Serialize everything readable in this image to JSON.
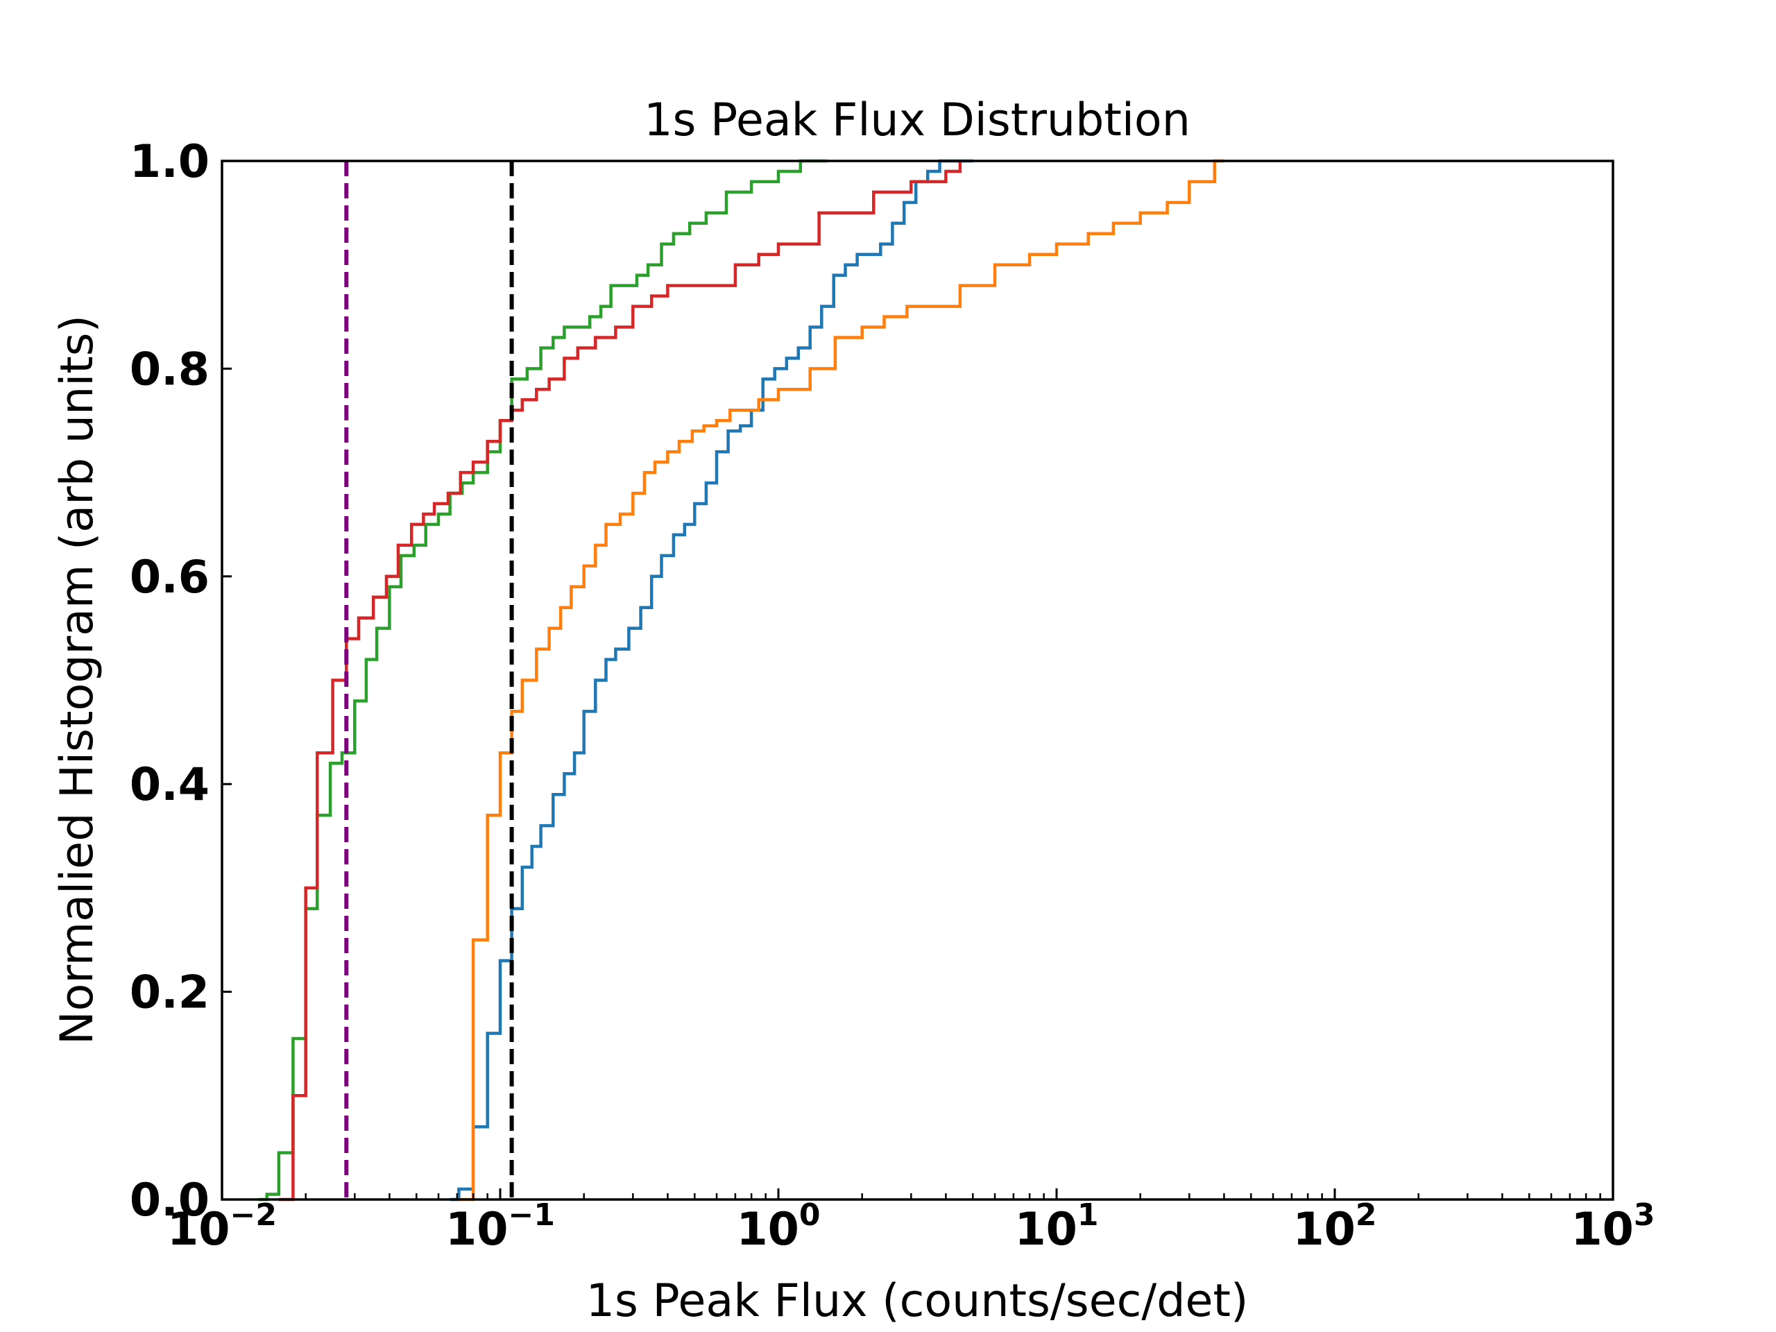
{
  "chart_data": {
    "type": "line",
    "title": "1s Peak Flux Distrubtion",
    "xlabel": "1s Peak Flux (counts/sec/det)",
    "ylabel": "Normalied Histogram (arb units)",
    "x_scale": "log",
    "xlim": [
      0.01,
      1000
    ],
    "ylim": [
      0.0,
      1.0
    ],
    "grid": false,
    "legend": "none",
    "yticks": [
      "0.0",
      "0.2",
      "0.4",
      "0.6",
      "0.8",
      "1.0"
    ],
    "xticks": [
      {
        "base": "10",
        "exp": "−2"
      },
      {
        "base": "10",
        "exp": "−1"
      },
      {
        "base": "10",
        "exp": "0"
      },
      {
        "base": "10",
        "exp": "1"
      },
      {
        "base": "10",
        "exp": "2"
      },
      {
        "base": "10",
        "exp": "3"
      }
    ],
    "vlines": [
      {
        "x": 0.028,
        "color": "#800080",
        "style": "dashed"
      },
      {
        "x": 0.11,
        "color": "#000000",
        "style": "dashed"
      }
    ],
    "series": [
      {
        "color": "#1f77b4",
        "x": [
          0.066,
          0.071,
          0.08,
          0.09,
          0.1,
          0.11,
          0.12,
          0.13,
          0.14,
          0.155,
          0.17,
          0.185,
          0.2,
          0.22,
          0.24,
          0.26,
          0.29,
          0.32,
          0.35,
          0.38,
          0.42,
          0.46,
          0.5,
          0.55,
          0.6,
          0.66,
          0.73,
          0.8,
          0.88,
          0.97,
          1.07,
          1.18,
          1.3,
          1.43,
          1.58,
          1.74,
          1.92,
          2.11,
          2.33,
          2.57,
          2.83,
          3.12,
          3.44,
          3.8,
          4.2,
          4.7,
          5.0
        ],
        "y": [
          0.0,
          0.01,
          0.07,
          0.16,
          0.23,
          0.28,
          0.32,
          0.34,
          0.36,
          0.39,
          0.41,
          0.43,
          0.47,
          0.5,
          0.52,
          0.53,
          0.55,
          0.57,
          0.6,
          0.62,
          0.64,
          0.65,
          0.67,
          0.69,
          0.72,
          0.74,
          0.745,
          0.76,
          0.79,
          0.8,
          0.81,
          0.82,
          0.84,
          0.86,
          0.89,
          0.9,
          0.91,
          0.91,
          0.92,
          0.94,
          0.96,
          0.98,
          0.99,
          1.0,
          1.0,
          1.0,
          1.0
        ]
      },
      {
        "color": "#ff7f0e",
        "x": [
          0.07,
          0.08,
          0.09,
          0.1,
          0.11,
          0.12,
          0.135,
          0.15,
          0.165,
          0.18,
          0.2,
          0.22,
          0.24,
          0.27,
          0.3,
          0.33,
          0.36,
          0.4,
          0.44,
          0.49,
          0.54,
          0.6,
          0.67,
          0.75,
          0.85,
          1.0,
          1.3,
          1.6,
          2.0,
          2.4,
          2.9,
          3.5,
          4.5,
          6.0,
          8.0,
          10.0,
          13.0,
          16.0,
          20.0,
          25.0,
          30.0,
          37.0,
          40.0
        ],
        "y": [
          0.0,
          0.25,
          0.37,
          0.43,
          0.47,
          0.5,
          0.53,
          0.55,
          0.57,
          0.59,
          0.61,
          0.63,
          0.65,
          0.66,
          0.68,
          0.7,
          0.71,
          0.72,
          0.73,
          0.74,
          0.745,
          0.75,
          0.76,
          0.76,
          0.77,
          0.78,
          0.8,
          0.83,
          0.84,
          0.85,
          0.86,
          0.86,
          0.88,
          0.9,
          0.91,
          0.92,
          0.93,
          0.94,
          0.95,
          0.96,
          0.98,
          1.0,
          1.0
        ]
      },
      {
        "color": "#2ca02c",
        "x": [
          0.0135,
          0.0145,
          0.016,
          0.018,
          0.02,
          0.022,
          0.0245,
          0.027,
          0.03,
          0.033,
          0.036,
          0.04,
          0.044,
          0.049,
          0.054,
          0.06,
          0.066,
          0.073,
          0.08,
          0.09,
          0.1,
          0.11,
          0.125,
          0.14,
          0.155,
          0.17,
          0.19,
          0.21,
          0.23,
          0.25,
          0.28,
          0.31,
          0.34,
          0.38,
          0.42,
          0.48,
          0.55,
          0.65,
          0.8,
          1.0,
          1.2,
          1.5
        ],
        "y": [
          0.0,
          0.005,
          0.045,
          0.155,
          0.28,
          0.37,
          0.42,
          0.43,
          0.48,
          0.52,
          0.55,
          0.59,
          0.62,
          0.63,
          0.65,
          0.66,
          0.68,
          0.69,
          0.7,
          0.72,
          0.75,
          0.79,
          0.8,
          0.82,
          0.83,
          0.84,
          0.84,
          0.85,
          0.86,
          0.88,
          0.88,
          0.89,
          0.9,
          0.92,
          0.93,
          0.94,
          0.95,
          0.97,
          0.98,
          0.99,
          1.0,
          1.0
        ]
      },
      {
        "color": "#d62728",
        "x": [
          0.016,
          0.018,
          0.02,
          0.022,
          0.025,
          0.028,
          0.031,
          0.035,
          0.039,
          0.043,
          0.048,
          0.053,
          0.058,
          0.065,
          0.072,
          0.08,
          0.09,
          0.1,
          0.11,
          0.12,
          0.135,
          0.15,
          0.17,
          0.19,
          0.22,
          0.26,
          0.3,
          0.35,
          0.4,
          0.5,
          0.6,
          0.7,
          0.85,
          1.0,
          1.4,
          2.2,
          3.0,
          4.0,
          4.5
        ],
        "y": [
          0.0,
          0.1,
          0.3,
          0.43,
          0.5,
          0.54,
          0.56,
          0.58,
          0.6,
          0.63,
          0.65,
          0.66,
          0.67,
          0.68,
          0.7,
          0.71,
          0.73,
          0.75,
          0.76,
          0.77,
          0.78,
          0.79,
          0.81,
          0.82,
          0.83,
          0.84,
          0.86,
          0.87,
          0.88,
          0.88,
          0.88,
          0.9,
          0.91,
          0.92,
          0.95,
          0.97,
          0.98,
          0.99,
          1.0
        ]
      }
    ]
  }
}
